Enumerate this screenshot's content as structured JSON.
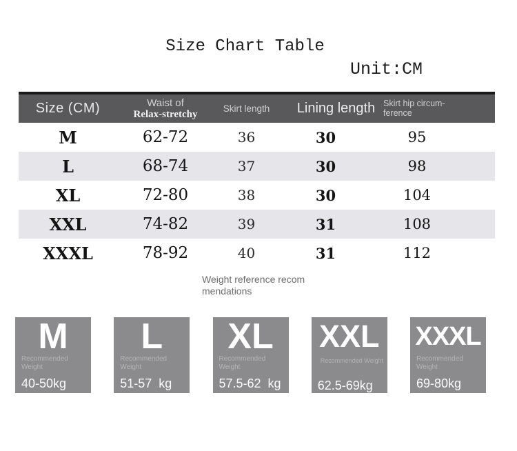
{
  "page": {
    "title": "Size Chart Table",
    "unit": "Unit:CM"
  },
  "table_header": {
    "col1": "Size (CM)",
    "col2_line1": "Waist of",
    "col2_line2": "Relax-stretchy",
    "col3": "Skirt length",
    "col4": "Lining length",
    "col5_line1": "Skirt hip circum-",
    "col5_line2": "ference"
  },
  "chart_data": {
    "type": "table",
    "title": "Size Chart Table",
    "unit": "CM",
    "columns": [
      "Size (CM)",
      "Waist of Relax-stretchy",
      "Skirt length",
      "Lining length",
      "Skirt hip circum-ference"
    ],
    "rows": [
      [
        "M",
        "62-72",
        "36",
        "30",
        "95"
      ],
      [
        "L",
        "68-74",
        "37",
        "30",
        "98"
      ],
      [
        "XL",
        "72-80",
        "38",
        "30",
        "104"
      ],
      [
        "XXL",
        "74-82",
        "39",
        "31",
        "108"
      ],
      [
        "XXXL",
        "78-92",
        "40",
        "31",
        "112"
      ]
    ]
  },
  "note": {
    "line1": "Weight reference recom",
    "line2": "mendations"
  },
  "weight_boxes": [
    {
      "size": "M",
      "label_lines": [
        "Recommended",
        "Weight"
      ],
      "value": "40-50kg"
    },
    {
      "size": "L",
      "label_lines": [
        "Recommended",
        "Weight"
      ],
      "value": "51-57  kg"
    },
    {
      "size": "XL",
      "label_lines": [
        "Recommended",
        "Weight"
      ],
      "value": "57.5-62  kg"
    },
    {
      "size": "XXL",
      "label_lines": [
        "Recommended Weight"
      ],
      "value": "62.5-69kg"
    },
    {
      "size": "XXXL",
      "label_lines": [
        "Recommended",
        "Weight"
      ],
      "value": "69-80kg"
    }
  ],
  "colors": {
    "header_bg": "#59595b",
    "header_top_border": "#1b1b1b",
    "row_alt_bg": "#e6e6ea",
    "box_bg": "#8b8b8d",
    "text_primary": "#141414",
    "header_text": "#e6e6e6",
    "muted_label": "#b4b4b6"
  }
}
